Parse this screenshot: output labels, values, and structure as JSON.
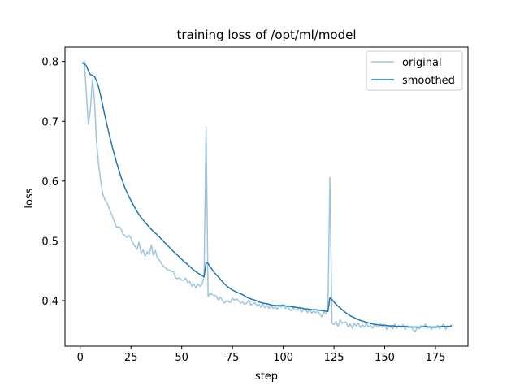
{
  "chart_data": {
    "type": "line",
    "title": "training loss of /opt/ml/model",
    "xlabel": "step",
    "ylabel": "loss",
    "xlim": [
      -7.5,
      191
    ],
    "ylim": [
      0.324,
      0.824
    ],
    "xticks": [
      0,
      25,
      50,
      75,
      100,
      125,
      150,
      175
    ],
    "yticks": [
      0.4,
      0.5,
      0.6,
      0.7,
      0.8
    ],
    "legend": {
      "placement": "top-right"
    },
    "grid": false,
    "series": [
      {
        "name": "original",
        "color": "#9ec5de",
        "points": [
          [
            1,
            0.797
          ],
          [
            2,
            0.801
          ],
          [
            3,
            0.748
          ],
          [
            4,
            0.695
          ],
          [
            5,
            0.718
          ],
          [
            6,
            0.77
          ],
          [
            7,
            0.737
          ],
          [
            8,
            0.668
          ],
          [
            9,
            0.63
          ],
          [
            10,
            0.603
          ],
          [
            11,
            0.58
          ],
          [
            12,
            0.57
          ],
          [
            13,
            0.565
          ],
          [
            14,
            0.557
          ],
          [
            15,
            0.548
          ],
          [
            16,
            0.54
          ],
          [
            17,
            0.53
          ],
          [
            18,
            0.523
          ],
          [
            19,
            0.524
          ],
          [
            20,
            0.521
          ],
          [
            21,
            0.512
          ],
          [
            22,
            0.509
          ],
          [
            23,
            0.506
          ],
          [
            24,
            0.509
          ],
          [
            25,
            0.505
          ],
          [
            26,
            0.496
          ],
          [
            27,
            0.491
          ],
          [
            28,
            0.486
          ],
          [
            29,
            0.498
          ],
          [
            30,
            0.479
          ],
          [
            31,
            0.485
          ],
          [
            32,
            0.474
          ],
          [
            33,
            0.482
          ],
          [
            34,
            0.477
          ],
          [
            35,
            0.493
          ],
          [
            36,
            0.476
          ],
          [
            37,
            0.484
          ],
          [
            38,
            0.471
          ],
          [
            39,
            0.468
          ],
          [
            40,
            0.462
          ],
          [
            41,
            0.458
          ],
          [
            42,
            0.455
          ],
          [
            43,
            0.452
          ],
          [
            44,
            0.451
          ],
          [
            45,
            0.449
          ],
          [
            46,
            0.449
          ],
          [
            47,
            0.438
          ],
          [
            48,
            0.437
          ],
          [
            49,
            0.438
          ],
          [
            50,
            0.434
          ],
          [
            51,
            0.434
          ],
          [
            52,
            0.438
          ],
          [
            53,
            0.43
          ],
          [
            54,
            0.432
          ],
          [
            55,
            0.424
          ],
          [
            56,
            0.428
          ],
          [
            57,
            0.421
          ],
          [
            58,
            0.428
          ],
          [
            59,
            0.424
          ],
          [
            60,
            0.427
          ],
          [
            61,
            0.44
          ],
          [
            62,
            0.691
          ],
          [
            63,
            0.407
          ],
          [
            64,
            0.412
          ],
          [
            65,
            0.41
          ],
          [
            66,
            0.409
          ],
          [
            67,
            0.408
          ],
          [
            68,
            0.401
          ],
          [
            69,
            0.406
          ],
          [
            70,
            0.401
          ],
          [
            71,
            0.396
          ],
          [
            72,
            0.4
          ],
          [
            73,
            0.399
          ],
          [
            74,
            0.397
          ],
          [
            75,
            0.404
          ],
          [
            76,
            0.401
          ],
          [
            77,
            0.403
          ],
          [
            78,
            0.4
          ],
          [
            79,
            0.396
          ],
          [
            80,
            0.398
          ],
          [
            81,
            0.394
          ],
          [
            82,
            0.396
          ],
          [
            83,
            0.401
          ],
          [
            84,
            0.393
          ],
          [
            85,
            0.394
          ],
          [
            86,
            0.397
          ],
          [
            87,
            0.391
          ],
          [
            88,
            0.394
          ],
          [
            89,
            0.389
          ],
          [
            90,
            0.396
          ],
          [
            91,
            0.388
          ],
          [
            92,
            0.392
          ],
          [
            93,
            0.387
          ],
          [
            94,
            0.392
          ],
          [
            95,
            0.387
          ],
          [
            96,
            0.39
          ],
          [
            97,
            0.386
          ],
          [
            98,
            0.392
          ],
          [
            99,
            0.389
          ],
          [
            100,
            0.394
          ],
          [
            101,
            0.387
          ],
          [
            102,
            0.391
          ],
          [
            103,
            0.386
          ],
          [
            104,
            0.383
          ],
          [
            105,
            0.389
          ],
          [
            106,
            0.384
          ],
          [
            107,
            0.386
          ],
          [
            108,
            0.389
          ],
          [
            109,
            0.381
          ],
          [
            110,
            0.385
          ],
          [
            111,
            0.385
          ],
          [
            112,
            0.38
          ],
          [
            113,
            0.386
          ],
          [
            114,
            0.379
          ],
          [
            115,
            0.383
          ],
          [
            116,
            0.38
          ],
          [
            117,
            0.382
          ],
          [
            118,
            0.378
          ],
          [
            119,
            0.373
          ],
          [
            120,
            0.381
          ],
          [
            121,
            0.378
          ],
          [
            122,
            0.386
          ],
          [
            123,
            0.606
          ],
          [
            124,
            0.363
          ],
          [
            125,
            0.36
          ],
          [
            126,
            0.365
          ],
          [
            127,
            0.357
          ],
          [
            128,
            0.368
          ],
          [
            129,
            0.362
          ],
          [
            130,
            0.364
          ],
          [
            131,
            0.364
          ],
          [
            132,
            0.356
          ],
          [
            133,
            0.361
          ],
          [
            134,
            0.354
          ],
          [
            135,
            0.362
          ],
          [
            136,
            0.357
          ],
          [
            137,
            0.363
          ],
          [
            138,
            0.355
          ],
          [
            139,
            0.36
          ],
          [
            140,
            0.356
          ],
          [
            141,
            0.362
          ],
          [
            142,
            0.356
          ],
          [
            143,
            0.359
          ],
          [
            144,
            0.354
          ],
          [
            145,
            0.36
          ],
          [
            146,
            0.357
          ],
          [
            147,
            0.356
          ],
          [
            148,
            0.362
          ],
          [
            149,
            0.355
          ],
          [
            150,
            0.36
          ],
          [
            151,
            0.352
          ],
          [
            152,
            0.357
          ],
          [
            153,
            0.356
          ],
          [
            154,
            0.353
          ],
          [
            155,
            0.361
          ],
          [
            156,
            0.354
          ],
          [
            157,
            0.359
          ],
          [
            158,
            0.355
          ],
          [
            159,
            0.36
          ],
          [
            160,
            0.352
          ],
          [
            161,
            0.358
          ],
          [
            162,
            0.355
          ],
          [
            163,
            0.357
          ],
          [
            164,
            0.351
          ],
          [
            165,
            0.348
          ],
          [
            166,
            0.356
          ],
          [
            167,
            0.353
          ],
          [
            168,
            0.359
          ],
          [
            169,
            0.356
          ],
          [
            170,
            0.361
          ],
          [
            171,
            0.354
          ],
          [
            172,
            0.357
          ],
          [
            173,
            0.352
          ],
          [
            174,
            0.356
          ],
          [
            175,
            0.354
          ],
          [
            176,
            0.359
          ],
          [
            177,
            0.353
          ],
          [
            178,
            0.357
          ],
          [
            179,
            0.361
          ],
          [
            180,
            0.352
          ],
          [
            181,
            0.358
          ],
          [
            182,
            0.356
          ],
          [
            183,
            0.36
          ]
        ]
      },
      {
        "name": "smoothed",
        "color": "#1f77b4",
        "points": [
          [
            1,
            0.797
          ],
          [
            2,
            0.797
          ],
          [
            3,
            0.793
          ],
          [
            4,
            0.785
          ],
          [
            5,
            0.778
          ],
          [
            6,
            0.777
          ],
          [
            7,
            0.775
          ],
          [
            8,
            0.768
          ],
          [
            9,
            0.758
          ],
          [
            10,
            0.744
          ],
          [
            12,
            0.712
          ],
          [
            14,
            0.682
          ],
          [
            16,
            0.655
          ],
          [
            18,
            0.63
          ],
          [
            20,
            0.608
          ],
          [
            22,
            0.589
          ],
          [
            24,
            0.574
          ],
          [
            26,
            0.561
          ],
          [
            28,
            0.549
          ],
          [
            30,
            0.539
          ],
          [
            32,
            0.531
          ],
          [
            34,
            0.523
          ],
          [
            36,
            0.516
          ],
          [
            38,
            0.51
          ],
          [
            40,
            0.503
          ],
          [
            42,
            0.496
          ],
          [
            44,
            0.489
          ],
          [
            46,
            0.482
          ],
          [
            48,
            0.476
          ],
          [
            50,
            0.469
          ],
          [
            52,
            0.463
          ],
          [
            54,
            0.457
          ],
          [
            56,
            0.451
          ],
          [
            58,
            0.446
          ],
          [
            60,
            0.442
          ],
          [
            61,
            0.44
          ],
          [
            62,
            0.464
          ],
          [
            63,
            0.462
          ],
          [
            64,
            0.457
          ],
          [
            65,
            0.452
          ],
          [
            66,
            0.447
          ],
          [
            68,
            0.44
          ],
          [
            70,
            0.432
          ],
          [
            72,
            0.425
          ],
          [
            74,
            0.42
          ],
          [
            76,
            0.416
          ],
          [
            78,
            0.413
          ],
          [
            80,
            0.41
          ],
          [
            82,
            0.406
          ],
          [
            84,
            0.403
          ],
          [
            86,
            0.401
          ],
          [
            88,
            0.398
          ],
          [
            90,
            0.396
          ],
          [
            92,
            0.395
          ],
          [
            94,
            0.393
          ],
          [
            96,
            0.392
          ],
          [
            98,
            0.392
          ],
          [
            100,
            0.392
          ],
          [
            102,
            0.391
          ],
          [
            104,
            0.39
          ],
          [
            106,
            0.389
          ],
          [
            108,
            0.388
          ],
          [
            110,
            0.387
          ],
          [
            112,
            0.386
          ],
          [
            114,
            0.385
          ],
          [
            116,
            0.385
          ],
          [
            118,
            0.384
          ],
          [
            120,
            0.383
          ],
          [
            122,
            0.382
          ],
          [
            123,
            0.405
          ],
          [
            124,
            0.402
          ],
          [
            125,
            0.398
          ],
          [
            126,
            0.394
          ],
          [
            128,
            0.388
          ],
          [
            130,
            0.382
          ],
          [
            132,
            0.377
          ],
          [
            134,
            0.373
          ],
          [
            136,
            0.37
          ],
          [
            138,
            0.367
          ],
          [
            140,
            0.365
          ],
          [
            142,
            0.363
          ],
          [
            144,
            0.361
          ],
          [
            146,
            0.36
          ],
          [
            148,
            0.359
          ],
          [
            150,
            0.359
          ],
          [
            152,
            0.358
          ],
          [
            154,
            0.358
          ],
          [
            156,
            0.357
          ],
          [
            158,
            0.357
          ],
          [
            160,
            0.357
          ],
          [
            162,
            0.356
          ],
          [
            164,
            0.356
          ],
          [
            166,
            0.356
          ],
          [
            168,
            0.356
          ],
          [
            170,
            0.357
          ],
          [
            172,
            0.356
          ],
          [
            174,
            0.356
          ],
          [
            176,
            0.356
          ],
          [
            178,
            0.357
          ],
          [
            180,
            0.357
          ],
          [
            182,
            0.357
          ],
          [
            183,
            0.358
          ]
        ]
      }
    ]
  }
}
